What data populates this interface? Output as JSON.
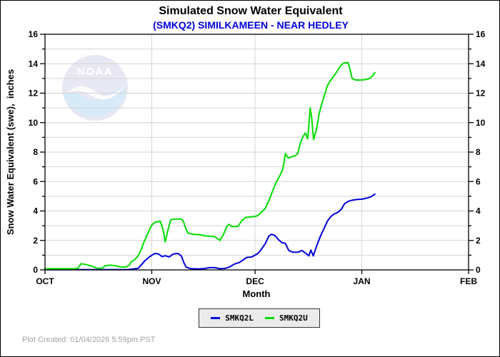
{
  "title": "Simulated Snow Water Equivalent",
  "subtitle": "(SMKQ2) SIMILKAMEEN - NEAR HEDLEY",
  "footer": {
    "plot_created": "Plot Created: 01/04/2026 5:59pm PST"
  },
  "logo": {
    "text": "NOAA"
  },
  "colors": {
    "subtitle_text": "#0000dd",
    "grid": "#d4d4d4",
    "axis": "#000000",
    "legend_bg": "#ebebeb",
    "footer_text": "#a3a3a3",
    "series_lower": "#0000dd",
    "series_upper": "#00dd00"
  },
  "chart_data": {
    "type": "line",
    "title": "Simulated Snow Water Equivalent",
    "subtitle": "(SMKQ2) SIMILKAMEEN - NEAR HEDLEY",
    "xlabel": "Month",
    "ylabel": "Snow Water Equivalent (swe),  inches",
    "grid": true,
    "legend_position": "bottom-center",
    "x_axis": {
      "tick_labels": [
        "OCT",
        "NOV",
        "DEC",
        "JAN",
        "FEB"
      ],
      "tick_days": [
        0,
        31,
        61,
        92,
        123
      ],
      "total_days": 123,
      "note": "days measured from OCT 1"
    },
    "y_axis": {
      "min": 0,
      "max": 16,
      "major_tick_step": 2,
      "minor_tick_step": 1,
      "tick_labels": [
        "0",
        "2",
        "4",
        "6",
        "8",
        "10",
        "12",
        "14",
        "16"
      ],
      "mirrored_right": true
    },
    "series": [
      {
        "name": "SMKQ2L",
        "color": "#0000dd",
        "points": [
          [
            0,
            0.02
          ],
          [
            8,
            0.02
          ],
          [
            16,
            0.02
          ],
          [
            24,
            0.02
          ],
          [
            27,
            0.1
          ],
          [
            28,
            0.35
          ],
          [
            29,
            0.62
          ],
          [
            30,
            0.82
          ],
          [
            31,
            1.0
          ],
          [
            32,
            1.12
          ],
          [
            33,
            1.08
          ],
          [
            34,
            0.9
          ],
          [
            35,
            0.96
          ],
          [
            36,
            0.88
          ],
          [
            37.3,
            1.08
          ],
          [
            38.6,
            1.12
          ],
          [
            39.6,
            0.95
          ],
          [
            40.3,
            0.5
          ],
          [
            41,
            0.18
          ],
          [
            42.5,
            0.08
          ],
          [
            44.5,
            0.07
          ],
          [
            46.5,
            0.09
          ],
          [
            47.8,
            0.16
          ],
          [
            49.3,
            0.15
          ],
          [
            50.8,
            0.08
          ],
          [
            52.3,
            0.1
          ],
          [
            53.6,
            0.2
          ],
          [
            55,
            0.4
          ],
          [
            56.4,
            0.5
          ],
          [
            57.4,
            0.65
          ],
          [
            58.6,
            0.85
          ],
          [
            60,
            0.88
          ],
          [
            61,
            1.0
          ],
          [
            62,
            1.15
          ],
          [
            63,
            1.45
          ],
          [
            64,
            1.8
          ],
          [
            65,
            2.3
          ],
          [
            65.8,
            2.42
          ],
          [
            66.8,
            2.32
          ],
          [
            67.8,
            2.05
          ],
          [
            68.8,
            1.85
          ],
          [
            69.8,
            1.8
          ],
          [
            70.8,
            1.32
          ],
          [
            72,
            1.2
          ],
          [
            73.4,
            1.2
          ],
          [
            74.6,
            1.32
          ],
          [
            75.6,
            1.15
          ],
          [
            76.6,
            0.95
          ],
          [
            77.2,
            1.35
          ],
          [
            77.9,
            0.95
          ],
          [
            79,
            1.7
          ],
          [
            80,
            2.3
          ],
          [
            81,
            2.8
          ],
          [
            82,
            3.3
          ],
          [
            83,
            3.62
          ],
          [
            84,
            3.8
          ],
          [
            85,
            3.9
          ],
          [
            86,
            4.1
          ],
          [
            87,
            4.5
          ],
          [
            88,
            4.65
          ],
          [
            89,
            4.72
          ],
          [
            90.5,
            4.78
          ],
          [
            92,
            4.8
          ],
          [
            93.5,
            4.88
          ],
          [
            94.8,
            4.98
          ],
          [
            95.8,
            5.15
          ]
        ]
      },
      {
        "name": "SMKQ2U",
        "color": "#00dd00",
        "points": [
          [
            0,
            0.08
          ],
          [
            4,
            0.08
          ],
          [
            8,
            0.08
          ],
          [
            9.5,
            0.1
          ],
          [
            10.5,
            0.42
          ],
          [
            11.5,
            0.38
          ],
          [
            13,
            0.3
          ],
          [
            14,
            0.22
          ],
          [
            15,
            0.12
          ],
          [
            16.5,
            0.1
          ],
          [
            17.5,
            0.28
          ],
          [
            19,
            0.32
          ],
          [
            20.5,
            0.28
          ],
          [
            22,
            0.2
          ],
          [
            23.5,
            0.2
          ],
          [
            24.5,
            0.32
          ],
          [
            25,
            0.55
          ],
          [
            26,
            0.68
          ],
          [
            27,
            0.95
          ],
          [
            27.8,
            1.3
          ],
          [
            28.5,
            1.75
          ],
          [
            29.5,
            2.3
          ],
          [
            30.5,
            2.8
          ],
          [
            31,
            3.05
          ],
          [
            32,
            3.25
          ],
          [
            33.5,
            3.3
          ],
          [
            34.3,
            2.7
          ],
          [
            34.9,
            1.9
          ],
          [
            35.6,
            2.6
          ],
          [
            36.5,
            3.4
          ],
          [
            37.5,
            3.45
          ],
          [
            39.5,
            3.45
          ],
          [
            40.2,
            3.3
          ],
          [
            40.8,
            2.85
          ],
          [
            41.5,
            2.5
          ],
          [
            43,
            2.42
          ],
          [
            45,
            2.38
          ],
          [
            47,
            2.3
          ],
          [
            49,
            2.28
          ],
          [
            50,
            2.15
          ],
          [
            50.8,
            2.0
          ],
          [
            51.8,
            2.4
          ],
          [
            52.8,
            2.95
          ],
          [
            53.4,
            3.1
          ],
          [
            54.2,
            2.95
          ],
          [
            56,
            2.95
          ],
          [
            57.2,
            3.35
          ],
          [
            58.2,
            3.55
          ],
          [
            59.5,
            3.6
          ],
          [
            61,
            3.62
          ],
          [
            62,
            3.72
          ],
          [
            63,
            3.95
          ],
          [
            64,
            4.2
          ],
          [
            65,
            4.7
          ],
          [
            66,
            5.3
          ],
          [
            67,
            5.9
          ],
          [
            68,
            6.3
          ],
          [
            69,
            6.8
          ],
          [
            69.4,
            7.3
          ],
          [
            69.8,
            7.9
          ],
          [
            70.6,
            7.6
          ],
          [
            71.6,
            7.68
          ],
          [
            72.6,
            7.75
          ],
          [
            73.4,
            7.9
          ],
          [
            74,
            8.5
          ],
          [
            74.8,
            9.0
          ],
          [
            75.6,
            9.3
          ],
          [
            76.3,
            8.9
          ],
          [
            77,
            11.0
          ],
          [
            77.4,
            10.4
          ],
          [
            78,
            8.85
          ],
          [
            78.8,
            9.5
          ],
          [
            79.6,
            10.6
          ],
          [
            80.4,
            11.3
          ],
          [
            81.2,
            11.9
          ],
          [
            82,
            12.5
          ],
          [
            83,
            12.9
          ],
          [
            84,
            13.2
          ],
          [
            85,
            13.55
          ],
          [
            86,
            13.9
          ],
          [
            86.8,
            14.05
          ],
          [
            88,
            14.08
          ],
          [
            88.6,
            13.6
          ],
          [
            89.2,
            13.0
          ],
          [
            90,
            12.9
          ],
          [
            91.5,
            12.88
          ],
          [
            93,
            12.92
          ],
          [
            94.3,
            13.0
          ],
          [
            95.2,
            13.2
          ],
          [
            95.8,
            13.4
          ]
        ]
      }
    ]
  }
}
